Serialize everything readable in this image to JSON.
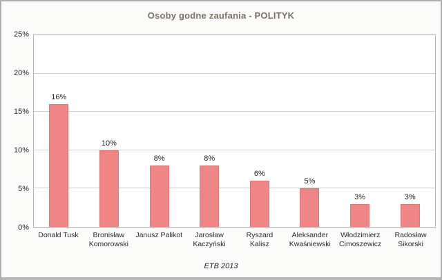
{
  "chart_data": {
    "type": "bar",
    "title": "Osoby godne zaufania - POLITYK",
    "categories": [
      "Donald Tusk",
      "Bronisław Komorowski",
      "Janusz Palikot",
      "Jarosław Kaczyński",
      "Ryszard Kalisz",
      "Aleksander Kwaśniewski",
      "Włodzimierz Cimoszewicz",
      "Radosław Sikorski"
    ],
    "values": [
      16,
      10,
      8,
      8,
      6,
      5,
      3,
      3
    ],
    "value_labels": [
      "16%",
      "10%",
      "8%",
      "8%",
      "6%",
      "5%",
      "3%",
      "3%"
    ],
    "xlabel": "",
    "ylabel": "",
    "ylim": [
      0,
      25
    ],
    "yticks": [
      0,
      5,
      10,
      15,
      20,
      25
    ],
    "ytick_labels": [
      "0%",
      "5%",
      "10%",
      "15%",
      "20%",
      "25%"
    ],
    "grid": "horizontal",
    "legend": "none",
    "source": "ETB 2013"
  },
  "colors": {
    "bar_fill": "#f08585",
    "bar_edge": "#e07474",
    "title_text": "#7b7265",
    "gridline": "#cccccc",
    "plot_border": "#b3b3b3",
    "frame_border": "#adadad",
    "background": "#fbfbfa",
    "plot_background": "#ffffff",
    "label_text": "#2a2a2a"
  }
}
